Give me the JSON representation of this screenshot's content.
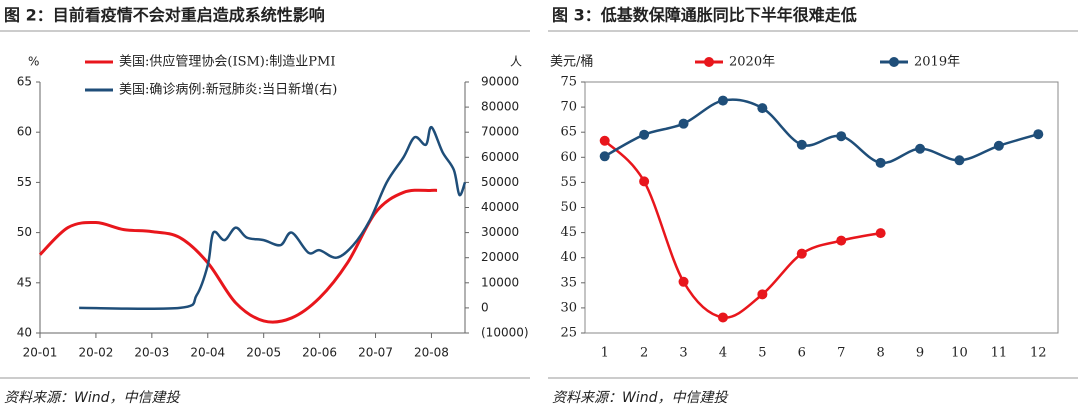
{
  "chart_data": [
    {
      "type": "line",
      "title": "图 2：目前看疫情不会对重启造成系统性影响",
      "source": "资料来源：Wind，中信建投",
      "ylabel": "%",
      "y2label": "人",
      "xlim": [
        0,
        7.6
      ],
      "xticks": [
        {
          "value": 0,
          "label": "20-01"
        },
        {
          "value": 1,
          "label": "20-02"
        },
        {
          "value": 2,
          "label": "20-03"
        },
        {
          "value": 3,
          "label": "20-04"
        },
        {
          "value": 4,
          "label": "20-05"
        },
        {
          "value": 5,
          "label": "20-06"
        },
        {
          "value": 6,
          "label": "20-07"
        },
        {
          "value": 7,
          "label": "20-08"
        }
      ],
      "ylim": [
        40,
        65
      ],
      "yticks": [
        40,
        45,
        50,
        55,
        60,
        65
      ],
      "y2lim": [
        -10000,
        90000
      ],
      "y2ticks": [
        {
          "value": -10000,
          "label": "(10000)"
        },
        0,
        10000,
        20000,
        30000,
        40000,
        50000,
        60000,
        70000,
        80000,
        90000
      ],
      "legend": "top-left",
      "series": [
        {
          "name": "美国:供应管理协会(ISM):制造业PMI",
          "color": "#e8161c",
          "x": [
            0,
            0.5,
            1,
            1.5,
            2,
            2.5,
            3,
            3.5,
            4,
            4.5,
            5,
            5.5,
            6,
            6.5,
            7,
            7.1
          ],
          "values": [
            47.8,
            50.5,
            51,
            50.3,
            50.1,
            49.5,
            47,
            43,
            41.2,
            41.5,
            43.5,
            47,
            52,
            54,
            54.2,
            54.2
          ]
        },
        {
          "name": "美国:确诊病例:新冠肺炎:当日新增(右)",
          "color": "#1f4e79",
          "axis": "y2",
          "x": [
            0.7,
            2.5,
            2.8,
            3,
            3.1,
            3.3,
            3.5,
            3.7,
            4,
            4.3,
            4.5,
            4.8,
            5,
            5.3,
            5.6,
            5.9,
            6.2,
            6.5,
            6.7,
            6.9,
            7,
            7.2,
            7.4,
            7.5,
            7.6
          ],
          "values": [
            0,
            0,
            5000,
            17000,
            30000,
            27000,
            32000,
            28000,
            27000,
            25000,
            30000,
            22000,
            23000,
            20000,
            25000,
            35000,
            50000,
            60000,
            68000,
            65000,
            72000,
            62000,
            55000,
            45000,
            50000
          ]
        }
      ]
    },
    {
      "type": "line",
      "title": "图 3：低基数保障通胀同比下半年很难走低",
      "source": "资料来源：Wind，中信建投",
      "ylabel": "美元/桶",
      "categories": [
        "1",
        "2",
        "3",
        "4",
        "5",
        "6",
        "7",
        "8",
        "9",
        "10",
        "11",
        "12"
      ],
      "ylim": [
        25,
        75
      ],
      "yticks": [
        25,
        30,
        35,
        40,
        45,
        50,
        55,
        60,
        65,
        70,
        75
      ],
      "legend": "top",
      "series": [
        {
          "name": "2020年",
          "color": "#e8161c",
          "values": [
            63.3,
            55.2,
            35.2,
            28.1,
            32.7,
            40.8,
            43.4,
            44.9,
            null,
            null,
            null,
            null
          ]
        },
        {
          "name": "2019年",
          "color": "#1f4e79",
          "values": [
            60.2,
            64.5,
            66.7,
            71.3,
            69.8,
            62.5,
            64.2,
            58.9,
            61.7,
            59.4,
            62.3,
            64.6
          ]
        }
      ]
    }
  ]
}
